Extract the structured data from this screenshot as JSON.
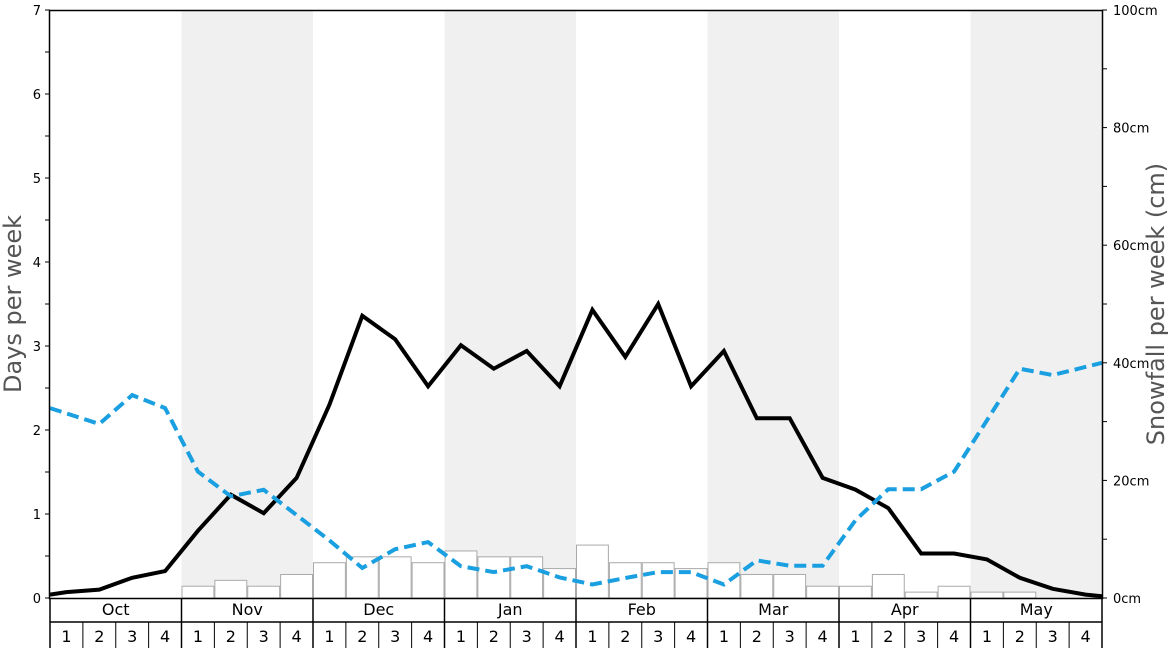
{
  "chart_data": {
    "type": "bar+line",
    "y_left": {
      "label": "Days per week",
      "ylim": [
        0,
        7
      ],
      "ticks": [
        "0",
        "1",
        "2",
        "3",
        "4",
        "5",
        "6",
        "7"
      ]
    },
    "y_right": {
      "label": "Snowfall per week (cm)",
      "ylim": [
        0,
        100
      ],
      "ticks": [
        "0cm",
        "20cm",
        "40cm",
        "60cm",
        "80cm",
        "100cm"
      ]
    },
    "months": [
      "Oct",
      "Nov",
      "Dec",
      "Jan",
      "Feb",
      "Mar",
      "Apr",
      "May"
    ],
    "weeks": [
      "1",
      "2",
      "3",
      "4"
    ],
    "x": [
      "Oct 1",
      "Oct 2",
      "Oct 3",
      "Oct 4",
      "Nov 1",
      "Nov 2",
      "Nov 3",
      "Nov 4",
      "Dec 1",
      "Dec 2",
      "Dec 3",
      "Dec 4",
      "Jan 1",
      "Jan 2",
      "Jan 3",
      "Jan 4",
      "Feb 1",
      "Feb 2",
      "Feb 3",
      "Feb 4",
      "Mar 1",
      "Mar 2",
      "Mar 3",
      "Mar 4",
      "Apr 1",
      "Apr 2",
      "Apr 3",
      "Apr 4",
      "May 1",
      "May 2",
      "May 3",
      "May 4"
    ],
    "series": [
      {
        "axis": "left",
        "style": "bar",
        "color": "#ffffff",
        "stroke": "#aaaaaa",
        "values": [
          0,
          0,
          0,
          0,
          0.14,
          0.21,
          0.14,
          0.28,
          0.42,
          0.49,
          0.49,
          0.42,
          0.56,
          0.49,
          0.49,
          0.35,
          0.63,
          0.42,
          0.42,
          0.35,
          0.42,
          0.28,
          0.28,
          0.14,
          0.14,
          0.28,
          0.07,
          0.14,
          0.07,
          0.07,
          0,
          0
        ]
      },
      {
        "axis": "left",
        "style": "solid",
        "color": "#000000",
        "points": [
          [
            0,
            0.04
          ],
          [
            0.5,
            0.07
          ],
          [
            1.5,
            0.1
          ],
          [
            2.5,
            0.24
          ],
          [
            3.5,
            0.32
          ],
          [
            4.5,
            0.8
          ],
          [
            5.5,
            1.23
          ],
          [
            6.5,
            1.01
          ],
          [
            7.5,
            1.43
          ],
          [
            8.5,
            2.3
          ],
          [
            9.5,
            3.36
          ],
          [
            10.5,
            3.08
          ],
          [
            11.5,
            2.52
          ],
          [
            12.5,
            3.01
          ],
          [
            13.5,
            2.73
          ],
          [
            14.5,
            2.94
          ],
          [
            15.5,
            2.52
          ],
          [
            16.5,
            3.43
          ],
          [
            17.5,
            2.87
          ],
          [
            18.5,
            3.5
          ],
          [
            19.5,
            2.52
          ],
          [
            20.5,
            2.94
          ],
          [
            21.5,
            2.14
          ],
          [
            22.5,
            2.14
          ],
          [
            23.5,
            1.43
          ],
          [
            24.5,
            1.29
          ],
          [
            25.5,
            1.07
          ],
          [
            26.5,
            0.53
          ],
          [
            27.5,
            0.53
          ],
          [
            28.5,
            0.46
          ],
          [
            29.5,
            0.24
          ],
          [
            30.5,
            0.11
          ],
          [
            31.5,
            0.04
          ],
          [
            32,
            0.02
          ]
        ]
      },
      {
        "axis": "right",
        "style": "dashed",
        "color": "#1a9fe0",
        "points": [
          [
            0,
            32.3
          ],
          [
            1.5,
            29.6
          ],
          [
            2.5,
            34.5
          ],
          [
            3.5,
            32.3
          ],
          [
            4.5,
            21.5
          ],
          [
            5.5,
            17.3
          ],
          [
            6.5,
            18.4
          ],
          [
            7.5,
            14.1
          ],
          [
            8.5,
            9.8
          ],
          [
            9.5,
            5.1
          ],
          [
            10.5,
            8.3
          ],
          [
            11.5,
            9.5
          ],
          [
            12.5,
            5.4
          ],
          [
            13.5,
            4.4
          ],
          [
            14.5,
            5.4
          ],
          [
            15.5,
            3.5
          ],
          [
            16.5,
            2.3
          ],
          [
            17.5,
            3.4
          ],
          [
            18.5,
            4.4
          ],
          [
            19.5,
            4.4
          ],
          [
            20.5,
            2.3
          ],
          [
            21.5,
            6.4
          ],
          [
            22.5,
            5.5
          ],
          [
            23.5,
            5.5
          ],
          [
            24.5,
            13.2
          ],
          [
            25.5,
            18.5
          ],
          [
            26.5,
            18.5
          ],
          [
            27.5,
            21.5
          ],
          [
            28.5,
            30.2
          ],
          [
            29.5,
            39
          ],
          [
            30.5,
            37.9
          ],
          [
            32,
            40
          ]
        ]
      }
    ]
  }
}
